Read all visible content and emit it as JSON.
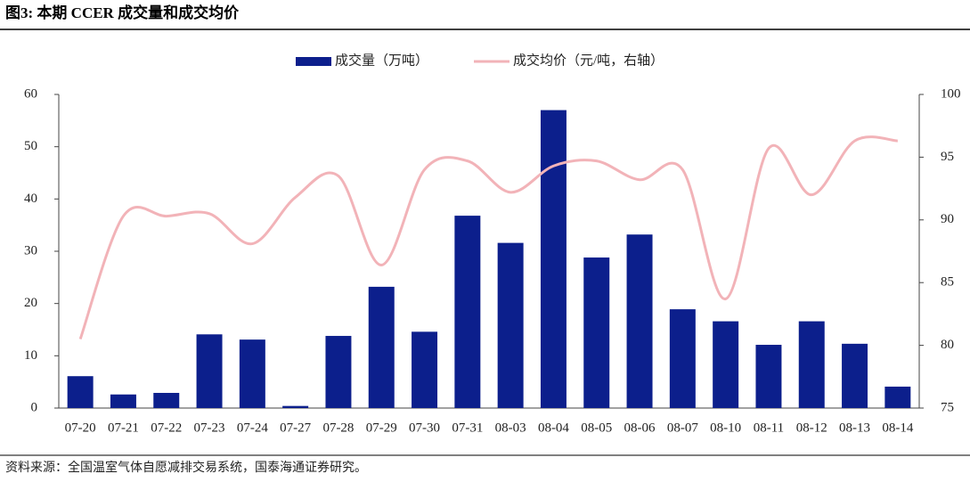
{
  "chart_data": {
    "type": "bar_line",
    "title": "图3: 本期 CCER 成交量和成交均价",
    "source": "资料来源：全国温室气体自愿减排交易系统，国泰海通证券研究。",
    "categories": [
      "07-20",
      "07-21",
      "07-22",
      "07-23",
      "07-24",
      "07-27",
      "07-28",
      "07-29",
      "07-30",
      "07-31",
      "08-03",
      "08-04",
      "08-05",
      "08-06",
      "08-07",
      "08-10",
      "08-11",
      "08-12",
      "08-13",
      "08-14"
    ],
    "series": [
      {
        "name": "成交量（万吨）",
        "type": "bar",
        "color": "#0c1f8c",
        "axis": "y",
        "values": [
          6.1,
          2.6,
          2.9,
          14.1,
          13.1,
          0.4,
          13.8,
          23.2,
          14.6,
          36.8,
          31.6,
          57,
          28.8,
          33.2,
          18.9,
          16.6,
          12.1,
          16.6,
          12.3,
          4.1
        ]
      },
      {
        "name": "成交均价（元/吨，右轴）",
        "type": "line",
        "color": "#f2b3b8",
        "axis": "y2",
        "values": [
          80.5,
          90.3,
          90.3,
          90.5,
          88.1,
          91.8,
          93.5,
          86.4,
          94.0,
          94.7,
          92.2,
          94.3,
          94.7,
          93.2,
          94.0,
          83.7,
          95.7,
          92.0,
          96.3,
          96.3
        ]
      }
    ],
    "ylim": [
      0,
      60
    ],
    "yticks": [
      0,
      10,
      20,
      30,
      40,
      50,
      60
    ],
    "y2lim": [
      75,
      100
    ],
    "y2ticks": [
      75,
      80,
      85,
      90,
      95,
      100
    ],
    "grid": false,
    "legend": "top"
  }
}
